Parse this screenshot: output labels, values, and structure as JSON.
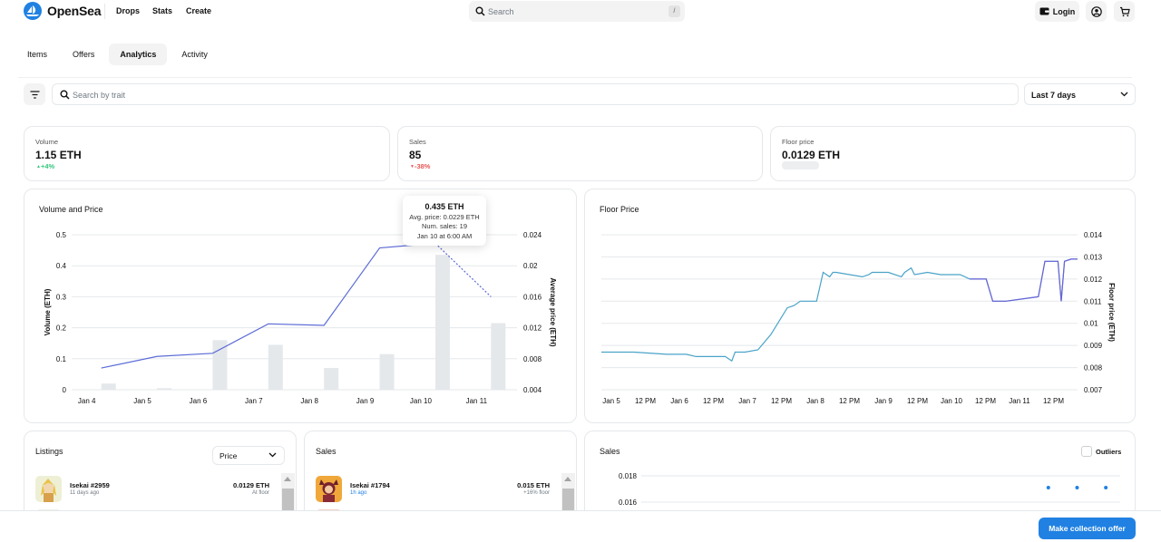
{
  "brand": {
    "name": "OpenSea",
    "accent": "#2081e2"
  },
  "nav": {
    "links": [
      "Drops",
      "Stats",
      "Create"
    ],
    "search_placeholder": "Search",
    "search_shortcut": "/",
    "login_label": "Login"
  },
  "tabs": [
    {
      "label": "Items",
      "active": false
    },
    {
      "label": "Offers",
      "active": false
    },
    {
      "label": "Analytics",
      "active": true
    },
    {
      "label": "Activity",
      "active": false
    }
  ],
  "filters": {
    "trait_placeholder": "Search by trait",
    "period": "Last 7 days"
  },
  "stats": [
    {
      "label": "Volume",
      "value": "1.15 ETH",
      "change": "+4%",
      "direction": "up"
    },
    {
      "label": "Sales",
      "value": "85",
      "change": "-38%",
      "direction": "down"
    },
    {
      "label": "Floor price",
      "value": "0.0129 ETH",
      "change": "",
      "direction": "none"
    }
  ],
  "volume_price": {
    "title": "Volume and Price",
    "tooltip": {
      "title": "0.435 ETH",
      "avg_price": "Avg. price: 0.0229 ETH",
      "num_sales": "Num. sales: 19",
      "date": "Jan 10 at 6:00 AM"
    }
  },
  "floor_chart": {
    "title": "Floor Price"
  },
  "listings": {
    "title": "Listings",
    "sort": "Price",
    "item": {
      "name": "Isekai #2959",
      "time": "11 days ago",
      "price": "0.0129 ETH",
      "note": "At floor"
    }
  },
  "sales_list": {
    "title": "Sales",
    "item": {
      "name": "Isekai #1794",
      "time": "1h ago",
      "price": "0.015 ETH",
      "note": "+16% floor"
    }
  },
  "sales_scatter": {
    "title": "Sales",
    "outliers_label": "Outliers"
  },
  "cta": {
    "label": "Make collection offer"
  },
  "chart_data": [
    {
      "type": "bar",
      "title": "Volume and Price",
      "xlabel": "",
      "ylabel": "Volume (ETH)",
      "y2label": "Average price (ETH)",
      "categories": [
        "Jan 4",
        "Jan 5",
        "Jan 6",
        "Jan 7",
        "Jan 8",
        "Jan 9",
        "Jan 10",
        "Jan 11"
      ],
      "yticks": [
        "0",
        "0.1",
        "0.2",
        "0.3",
        "0.4",
        "0.5"
      ],
      "y2ticks": [
        "0.004",
        "0.008",
        "0.012",
        "0.016",
        "0.02",
        "0.024"
      ],
      "ylim": [
        0,
        0.5
      ],
      "y2lim": [
        0.004,
        0.024
      ],
      "series": [
        {
          "values": [
            0.02,
            0.005,
            0.16,
            0.145,
            0.07,
            0.115,
            0.435,
            0.215
          ]
        },
        {
          "values": [
            0.0068,
            0.0083,
            0.0087,
            0.0125,
            0.0123,
            0.0223,
            0.0229,
            0.016
          ]
        }
      ],
      "grid": true
    },
    {
      "type": "line",
      "title": "Floor Price",
      "ylabel": "Floor price (ETH)",
      "xticks": [
        "Jan 5",
        "12 PM",
        "Jan 6",
        "12 PM",
        "Jan 7",
        "12 PM",
        "Jan 8",
        "12 PM",
        "Jan 9",
        "12 PM",
        "Jan 10",
        "12 PM",
        "Jan 11",
        "12 PM"
      ],
      "yticks": [
        "0.007",
        "0.008",
        "0.009",
        "0.01",
        "0.011",
        "0.012",
        "0.013",
        "0.014"
      ],
      "ylim": [
        0.007,
        0.014
      ],
      "x": [
        0,
        0.5,
        1,
        1.3,
        1.45,
        1.5,
        1.9,
        2.0,
        2.05,
        2.2,
        2.4,
        2.6,
        2.85,
        2.95,
        3.05,
        3.3,
        3.4,
        3.5,
        3.55,
        3.6,
        4.0,
        4.1,
        4.15,
        4.4,
        4.6,
        4.65,
        4.75,
        4.8,
        5.0,
        5.2,
        5.5,
        5.65,
        5.9,
        6.0,
        6.2,
        6.7,
        6.8,
        6.95,
        7.0,
        7.05,
        7.1,
        7.2,
        7.3
      ],
      "y": [
        0.0087,
        0.0087,
        0.0086,
        0.0086,
        0.0085,
        0.0085,
        0.0085,
        0.0083,
        0.0087,
        0.0087,
        0.0088,
        0.0095,
        0.0107,
        0.0108,
        0.011,
        0.011,
        0.0123,
        0.0121,
        0.0123,
        0.0123,
        0.0121,
        0.0122,
        0.0123,
        0.0123,
        0.0121,
        0.0123,
        0.0125,
        0.0122,
        0.0123,
        0.0122,
        0.0122,
        0.012,
        0.012,
        0.011,
        0.011,
        0.0112,
        0.0128,
        0.0128,
        0.0128,
        0.011,
        0.0128,
        0.0129,
        0.0129
      ],
      "grid": true
    },
    {
      "type": "scatter",
      "title": "Sales",
      "yticks": [
        "0.016",
        "0.018"
      ],
      "ylim": [
        0.015,
        0.019
      ],
      "x": [
        0.85,
        0.91,
        0.97
      ],
      "y": [
        0.0171,
        0.0171,
        0.0171
      ]
    }
  ]
}
